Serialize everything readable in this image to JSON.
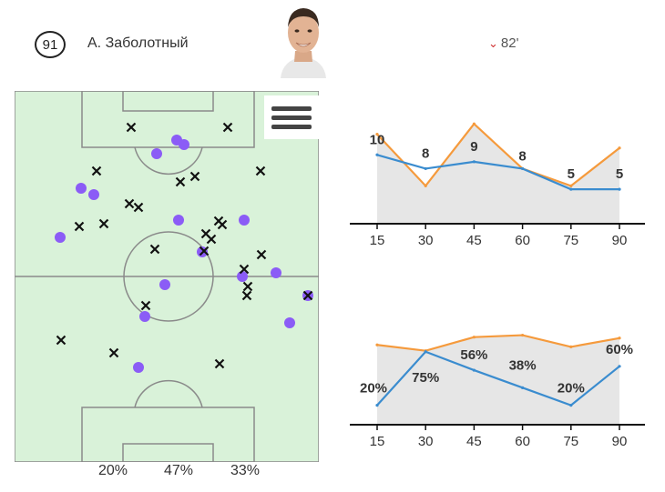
{
  "player": {
    "number": "91",
    "name": "А. Заболотный",
    "sub_minute": "82'",
    "sub_icon": "chevron-down-icon",
    "sub_color": "#d03030"
  },
  "pitch": {
    "colors": {
      "grass": "#d9f2d9",
      "lines": "#8a8a8a",
      "cross": "#111111",
      "dot": "#8b5cf6"
    },
    "zones": [
      "20%",
      "47%",
      "33%"
    ]
  },
  "chart_data": [
    {
      "type": "line",
      "x": [
        15,
        30,
        45,
        60,
        75,
        90
      ],
      "xlim": [
        15,
        90
      ],
      "ylim": [
        0,
        14
      ],
      "series": [
        {
          "color": "#f59a3c",
          "values": [
            13,
            5.5,
            14.5,
            8,
            5.5,
            11
          ]
        },
        {
          "color": "#3a8ccf",
          "values": [
            10,
            8,
            9,
            8,
            5,
            5
          ],
          "labels": [
            "10",
            "8",
            "9",
            "8",
            "5",
            "5"
          ]
        }
      ],
      "fill": "#e6e6e6"
    },
    {
      "type": "line",
      "x": [
        15,
        30,
        45,
        60,
        75,
        90
      ],
      "xlim": [
        15,
        90
      ],
      "ylim": [
        0,
        100
      ],
      "series": [
        {
          "color": "#f59a3c",
          "values": [
            82,
            76,
            90,
            92,
            80,
            89
          ]
        },
        {
          "color": "#3a8ccf",
          "values": [
            20,
            75,
            56,
            38,
            20,
            60
          ],
          "labels": [
            "20%",
            "75%",
            "56%",
            "38%",
            "20%",
            "60%"
          ]
        }
      ],
      "fill": "#e6e6e6"
    }
  ]
}
